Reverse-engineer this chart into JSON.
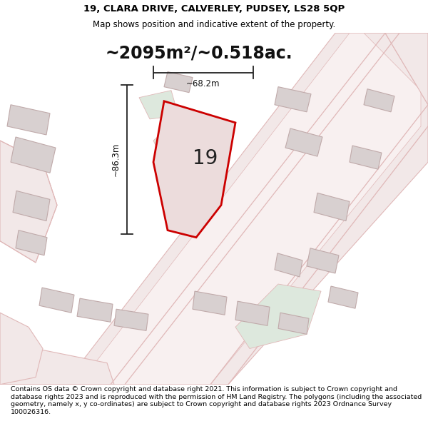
{
  "title_line1": "19, CLARA DRIVE, CALVERLEY, PUDSEY, LS28 5QP",
  "title_line2": "Map shows position and indicative extent of the property.",
  "area_text": "~2095m²/~0.518ac.",
  "property_number": "19",
  "dim_vertical": "~86.3m",
  "dim_horizontal": "~68.2m",
  "footer_text": "Contains OS data © Crown copyright and database right 2021. This information is subject to Crown copyright and database rights 2023 and is reproduced with the permission of HM Land Registry. The polygons (including the associated geometry, namely x, y co-ordinates) are subject to Crown copyright and database rights 2023 Ordnance Survey 100026316.",
  "bg_map_color": "#d8e5d8",
  "bg_title_color": "#ffffff",
  "bg_footer_color": "#ffffff",
  "road_fill": "#f2e8e8",
  "road_line": "#e0b8b8",
  "plot_fill": "#dde8dd",
  "property_fill": "#ecdcdc",
  "property_outline": "#cc0000",
  "building_fill": "#d8d0d0",
  "building_outline": "#c0aaaa",
  "dim_line_color": "#222222",
  "title_fontsize": 9.5,
  "subtitle_fontsize": 8.5,
  "area_fontsize": 17,
  "footer_fontsize": 6.8
}
